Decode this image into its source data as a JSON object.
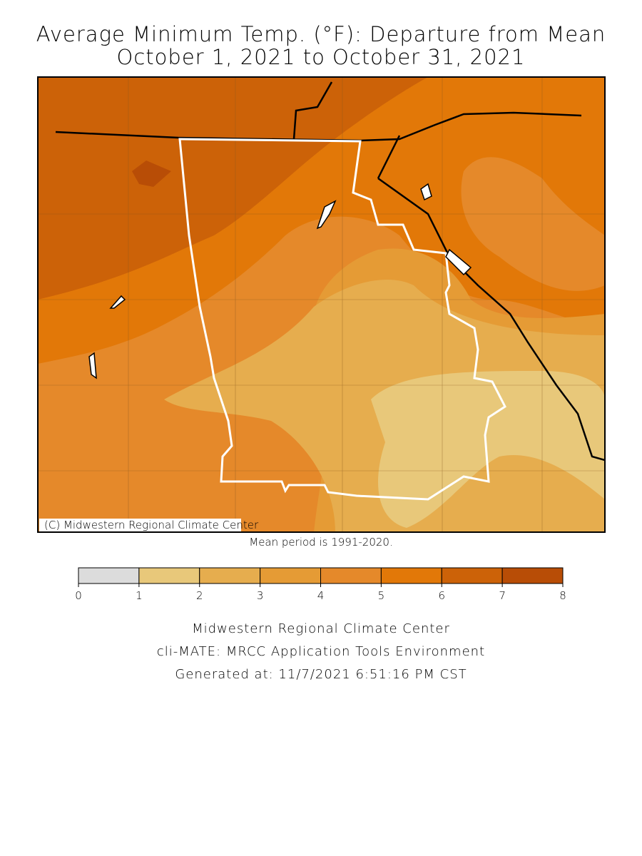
{
  "title": [
    "Average Minimum Temp. (°F): Departure from Mean",
    "October 1, 2021 to October 31, 2021"
  ],
  "map": {
    "credit": "(C) Midwestern Regional Climate Center"
  },
  "note": "Mean period is 1991-2020.",
  "legend": {
    "ticks": [
      0,
      1,
      2,
      3,
      4,
      5,
      6,
      7,
      8
    ],
    "colors": [
      "#dcdcdc",
      "#e8c87a",
      "#e6ad4e",
      "#e59b35",
      "#e5892a",
      "#e27808",
      "#cc6208",
      "#b84d06"
    ]
  },
  "footer": [
    "Midwestern Regional Climate Center",
    "cli-MATE: MRCC Application Tools Environment",
    "Generated at: 11/7/2021 6:51:16 PM CST"
  ]
}
